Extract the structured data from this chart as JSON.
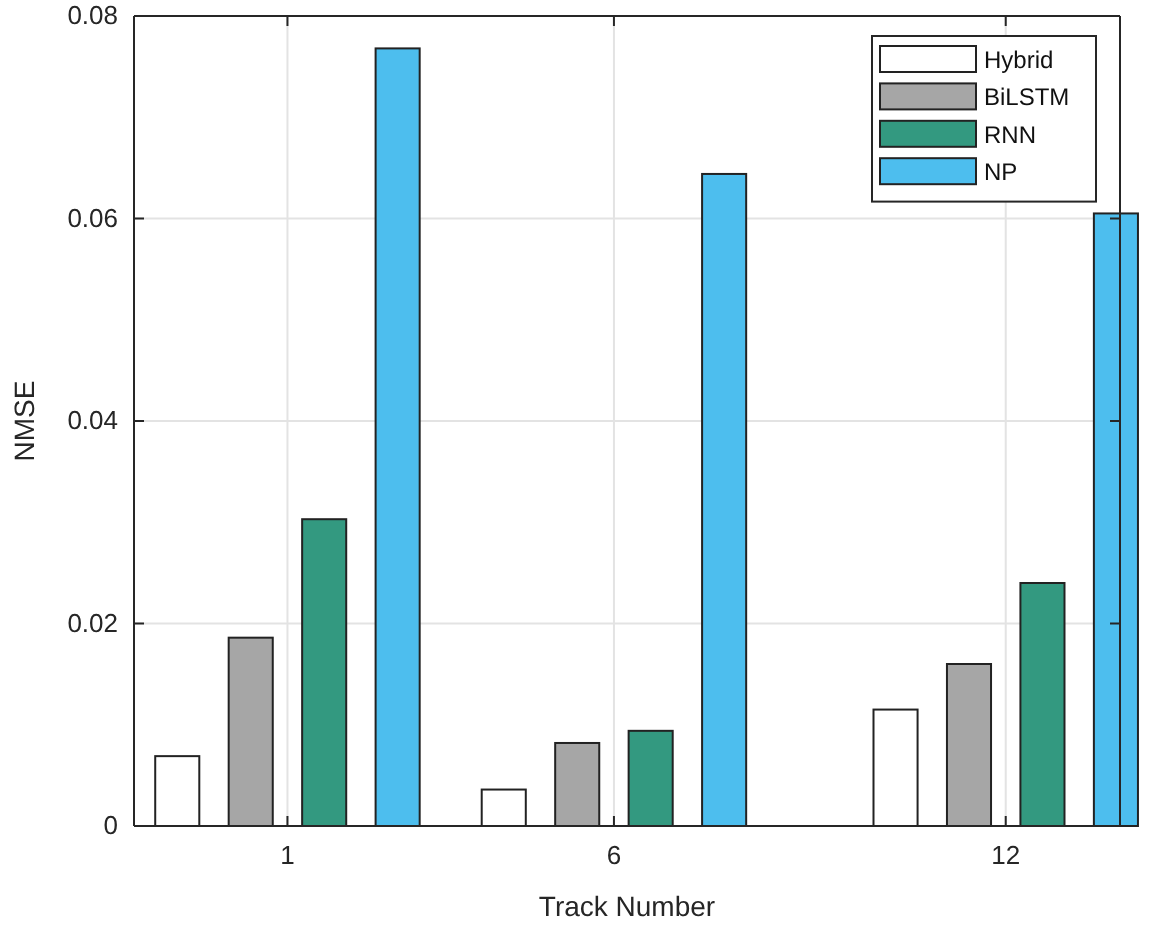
{
  "chart_data": {
    "type": "bar",
    "xlabel": "Track Number",
    "ylabel": "NMSE",
    "x": [
      1,
      6,
      12
    ],
    "xlim": [
      -1.35,
      13.75
    ],
    "xticks": [
      1,
      6,
      12
    ],
    "ylim": [
      0,
      0.08
    ],
    "yticks": [
      0,
      0.02,
      0.04,
      0.06,
      0.08
    ],
    "grid": true,
    "legend": "top right",
    "series": [
      {
        "name": "Hybrid",
        "color": "#ffffff",
        "values": [
          0.0069,
          0.0036,
          0.0115
        ]
      },
      {
        "name": "BiLSTM",
        "color": "#a6a6a6",
        "values": [
          0.0186,
          0.0082,
          0.016
        ]
      },
      {
        "name": "RNN",
        "color": "#339980",
        "values": [
          0.0303,
          0.0094,
          0.024
        ]
      },
      {
        "name": "NP",
        "color": "#4dbeee",
        "values": [
          0.0768,
          0.0644,
          0.0605
        ]
      }
    ]
  }
}
